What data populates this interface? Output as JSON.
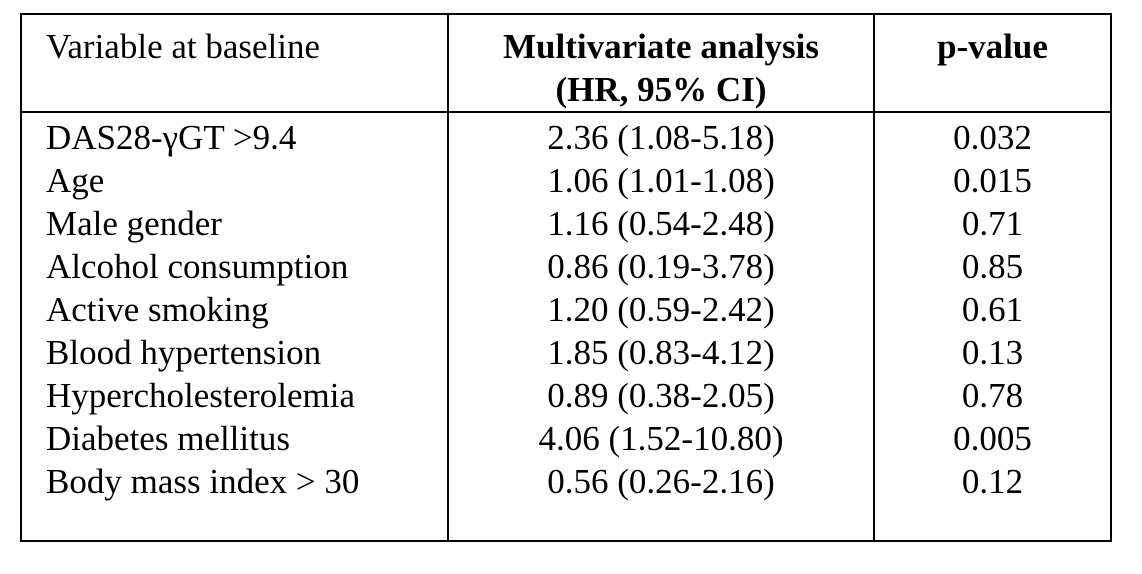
{
  "table": {
    "headers": {
      "variable": "Variable at baseline",
      "multivariate_line1": "Multivariate analysis",
      "multivariate_line2": "(HR, 95% CI)",
      "pvalue": "p-value"
    },
    "rows": [
      {
        "variable": "DAS28-γGT >9.4",
        "hr_ci": "2.36 (1.08-5.18)",
        "p": "0.032"
      },
      {
        "variable": "Age",
        "hr_ci": "1.06 (1.01-1.08)",
        "p": "0.015"
      },
      {
        "variable": "Male gender",
        "hr_ci": "1.16 (0.54-2.48)",
        "p": "0.71"
      },
      {
        "variable": "Alcohol consumption",
        "hr_ci": "0.86 (0.19-3.78)",
        "p": "0.85"
      },
      {
        "variable": "Active smoking",
        "hr_ci": "1.20 (0.59-2.42)",
        "p": "0.61"
      },
      {
        "variable": "Blood hypertension",
        "hr_ci": "1.85 (0.83-4.12)",
        "p": "0.13"
      },
      {
        "variable": "Hypercholesterolemia",
        "hr_ci": "0.89 (0.38-2.05)",
        "p": "0.78"
      },
      {
        "variable": "Diabetes mellitus",
        "hr_ci": "4.06 (1.52-10.80)",
        "p": "0.005"
      },
      {
        "variable": "Body mass index > 30",
        "hr_ci": "0.56 (0.26-2.16)",
        "p": "0.12"
      }
    ]
  }
}
